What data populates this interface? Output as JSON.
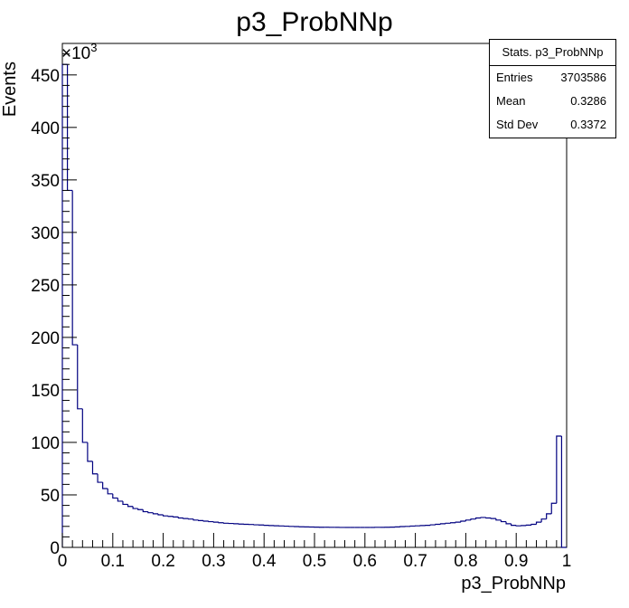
{
  "chart_data": {
    "type": "bar",
    "title": "p3_ProbNNp",
    "xlabel": "p3_ProbNNp",
    "ylabel": "Events",
    "y_multiplier_label": "×10",
    "y_multiplier_exp": "3",
    "xlim": [
      0,
      1
    ],
    "ylim": [
      0,
      480
    ],
    "y_units": "thousands of events",
    "x_tick_labels": [
      "0",
      "0.1",
      "0.2",
      "0.3",
      "0.4",
      "0.5",
      "0.6",
      "0.7",
      "0.8",
      "0.9",
      "1"
    ],
    "y_tick_labels": [
      "0",
      "50",
      "100",
      "150",
      "200",
      "250",
      "300",
      "350",
      "400",
      "450"
    ],
    "bin_width": 0.01,
    "series": [
      {
        "line_color": "#000080",
        "values": [
          460,
          340,
          193,
          132,
          100,
          82,
          70,
          62,
          56,
          51,
          47,
          44,
          41,
          39,
          37,
          36,
          34,
          33,
          32,
          31,
          30,
          29.5,
          29,
          28,
          27.5,
          27,
          26,
          25.5,
          25,
          24.5,
          24,
          23.5,
          23,
          22.8,
          22.5,
          22.2,
          22,
          21.8,
          21.5,
          21.3,
          21,
          20.8,
          20.6,
          20.4,
          20.2,
          20,
          19.8,
          19.6,
          19.5,
          19.4,
          19.3,
          19.2,
          19.2,
          19.1,
          19.1,
          19,
          19,
          19,
          19,
          19,
          19,
          19,
          19.1,
          19.1,
          19.2,
          19.3,
          19.5,
          19.8,
          20,
          20.3,
          20.5,
          20.8,
          21,
          21.5,
          22,
          22.5,
          23,
          23.5,
          24,
          25,
          26,
          27,
          28,
          28.5,
          28,
          27.5,
          26,
          24.5,
          22.5,
          21,
          20.5,
          20.8,
          21.2,
          22,
          24,
          27,
          32,
          42,
          106,
          0
        ]
      }
    ],
    "stats": {
      "title": "Stats. p3_ProbNNp",
      "rows": [
        {
          "key": "Entries",
          "value": "3703586"
        },
        {
          "key": "Mean",
          "value": "0.3286"
        },
        {
          "key": "Std Dev",
          "value": "0.3372"
        }
      ]
    }
  }
}
